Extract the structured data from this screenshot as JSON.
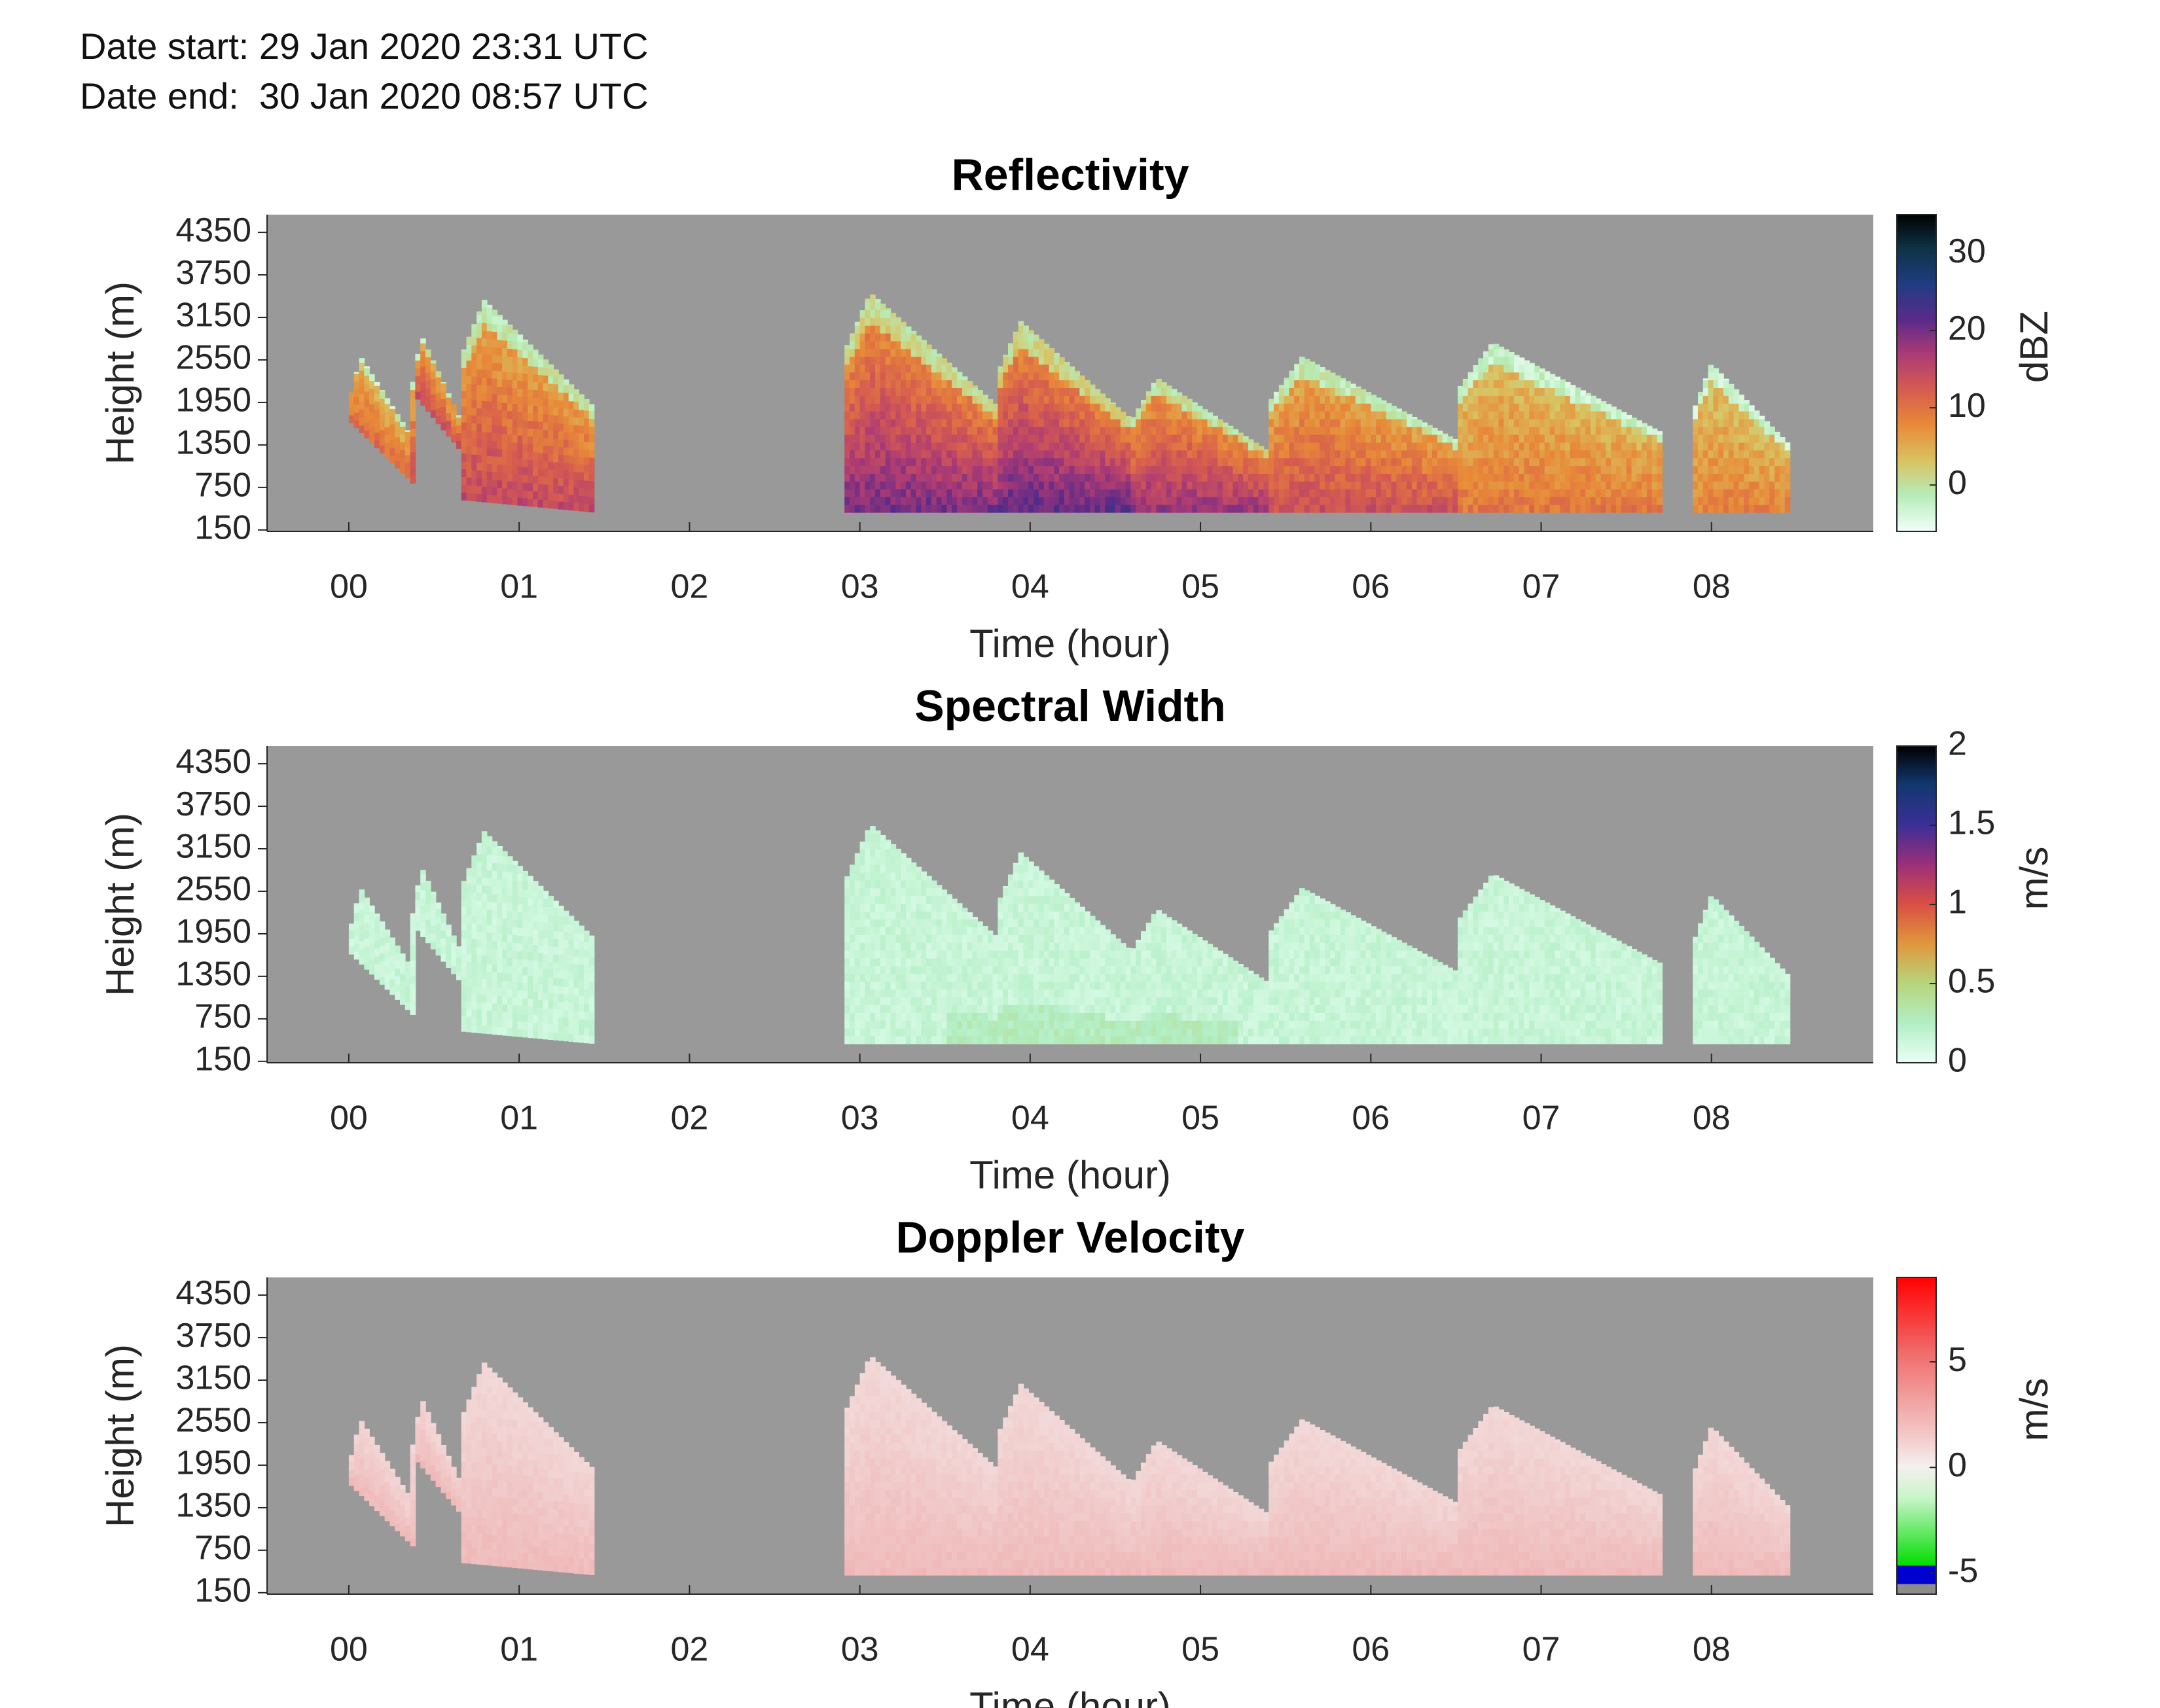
{
  "header": {
    "date_start": "Date start: 29 Jan 2020 23:31 UTC",
    "date_end": "Date end:  30 Jan 2020 08:57 UTC"
  },
  "colors": {
    "background": "#ffffff",
    "missing_data": "#999999",
    "reflectivity_colormap": [
      "#f0fff8",
      "#b6ecb8",
      "#d9c261",
      "#e88a38",
      "#d65c4f",
      "#ad3b74",
      "#5a2a8a",
      "#203c82",
      "#0e3446",
      "#000000"
    ],
    "spectral_width_colormap": [
      "#e8fff4",
      "#b2eec4",
      "#b8d47a",
      "#e0963c",
      "#d94e45",
      "#9b2f7a",
      "#3a2f96",
      "#123870",
      "#000000"
    ],
    "doppler_colormap": [
      "#8c8c8c",
      "#0000d0",
      "#00e000",
      "#c8f5c8",
      "#f5f0f0",
      "#f3b8b8",
      "#f07070",
      "#ff0000"
    ]
  },
  "chart_data": [
    {
      "type": "heatmap",
      "title": "Reflectivity",
      "xlabel": "Time (hour)",
      "ylabel": "Height (m)",
      "colorbar_label": "dBZ",
      "x_ticks": [
        "00",
        "01",
        "02",
        "03",
        "04",
        "05",
        "06",
        "07",
        "08"
      ],
      "y_ticks": [
        "150",
        "750",
        "1350",
        "1950",
        "2550",
        "3150",
        "3750",
        "4350"
      ],
      "colorbar_ticks": [
        "0",
        "10",
        "20",
        "30"
      ],
      "x_range_hours": [
        -0.48,
        8.95
      ],
      "y_range_m": [
        130,
        4600
      ],
      "colorbar_range": [
        -6,
        35
      ],
      "echo_cells": [
        {
          "t_start": 0.0,
          "t_end": 0.38,
          "base_m": 800,
          "top_m": 2600,
          "value": 10
        },
        {
          "t_start": 0.37,
          "t_end": 0.68,
          "base_m": 1200,
          "top_m": 2900,
          "value": 13
        },
        {
          "t_start": 0.65,
          "t_end": 1.45,
          "base_m": 400,
          "top_m": 3400,
          "value": 14
        },
        {
          "t_start": 2.9,
          "t_end": 3.8,
          "base_m": 400,
          "top_m": 3500,
          "value": 19
        },
        {
          "t_start": 3.8,
          "t_end": 4.6,
          "base_m": 400,
          "top_m": 3100,
          "value": 20
        },
        {
          "t_start": 4.6,
          "t_end": 5.4,
          "base_m": 400,
          "top_m": 2300,
          "value": 17
        },
        {
          "t_start": 5.4,
          "t_end": 6.5,
          "base_m": 400,
          "top_m": 2600,
          "value": 13
        },
        {
          "t_start": 6.5,
          "t_end": 7.7,
          "base_m": 400,
          "top_m": 2800,
          "value": 9
        },
        {
          "t_start": 7.9,
          "t_end": 8.45,
          "base_m": 400,
          "top_m": 2500,
          "value": 8
        }
      ]
    },
    {
      "type": "heatmap",
      "title": "Spectral Width",
      "xlabel": "Time (hour)",
      "ylabel": "Height (m)",
      "colorbar_label": "m/s",
      "x_ticks": [
        "00",
        "01",
        "02",
        "03",
        "04",
        "05",
        "06",
        "07",
        "08"
      ],
      "y_ticks": [
        "150",
        "750",
        "1350",
        "1950",
        "2550",
        "3150",
        "3750",
        "4350"
      ],
      "colorbar_ticks": [
        "0",
        "0.5",
        "1",
        "1.5",
        "2"
      ],
      "x_range_hours": [
        -0.48,
        8.95
      ],
      "y_range_m": [
        130,
        4600
      ],
      "colorbar_range": [
        0,
        2
      ],
      "typical_value_m_s": 0.15
    },
    {
      "type": "heatmap",
      "title": "Doppler Velocity",
      "xlabel": "Time (hour)",
      "ylabel": "Height (m)",
      "colorbar_label": "m/s",
      "x_ticks": [
        "00",
        "01",
        "02",
        "03",
        "04",
        "05",
        "06",
        "07",
        "08"
      ],
      "y_ticks": [
        "150",
        "750",
        "1350",
        "1950",
        "2550",
        "3150",
        "3750",
        "4350"
      ],
      "colorbar_ticks": [
        "-5",
        "0",
        "5"
      ],
      "x_range_hours": [
        -0.48,
        8.95
      ],
      "y_range_m": [
        130,
        4600
      ],
      "colorbar_range": [
        -6,
        9
      ],
      "typical_value_m_s": 1.5
    }
  ]
}
